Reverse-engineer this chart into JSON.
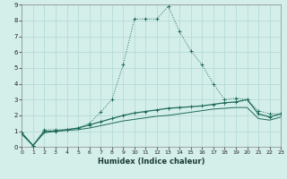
{
  "xlabel": "Humidex (Indice chaleur)",
  "bg_color": "#d4eeea",
  "grid_color": "#b0d8d4",
  "line_color": "#1e6b5a",
  "xlim": [
    0,
    23
  ],
  "ylim": [
    0,
    9
  ],
  "xticks": [
    0,
    1,
    2,
    3,
    4,
    5,
    6,
    7,
    8,
    9,
    10,
    11,
    12,
    13,
    14,
    15,
    16,
    17,
    18,
    19,
    20,
    21,
    22,
    23
  ],
  "yticks": [
    0,
    1,
    2,
    3,
    4,
    5,
    6,
    7,
    8,
    9
  ],
  "curve1_x": [
    0,
    1,
    2,
    3,
    4,
    5,
    6,
    7,
    8,
    9,
    10,
    11,
    12,
    13,
    14,
    15,
    16,
    17,
    18,
    19,
    20,
    21,
    22,
    23
  ],
  "curve1_y": [
    0.9,
    0.05,
    1.1,
    1.1,
    1.1,
    1.2,
    1.5,
    2.2,
    3.0,
    5.2,
    8.1,
    8.1,
    8.1,
    8.9,
    7.3,
    6.1,
    5.2,
    4.0,
    3.0,
    3.1,
    3.0,
    2.3,
    2.1,
    2.1
  ],
  "curve2_x": [
    0,
    1,
    2,
    3,
    4,
    5,
    6,
    7,
    8,
    9,
    10,
    11,
    12,
    13,
    14,
    15,
    16,
    17,
    18,
    19,
    20,
    21,
    22,
    23
  ],
  "curve2_y": [
    0.9,
    0.1,
    1.0,
    1.0,
    1.1,
    1.2,
    1.4,
    1.6,
    1.8,
    2.0,
    2.15,
    2.25,
    2.35,
    2.45,
    2.5,
    2.55,
    2.6,
    2.7,
    2.8,
    2.85,
    3.0,
    2.1,
    1.9,
    2.1
  ],
  "curve3_x": [
    0,
    1,
    2,
    3,
    4,
    5,
    6,
    7,
    8,
    9,
    10,
    11,
    12,
    13,
    14,
    15,
    16,
    17,
    18,
    19,
    20,
    21,
    22,
    23
  ],
  "curve3_y": [
    0.8,
    0.1,
    0.9,
    1.0,
    1.05,
    1.1,
    1.2,
    1.35,
    1.5,
    1.65,
    1.75,
    1.85,
    1.95,
    2.0,
    2.1,
    2.2,
    2.3,
    2.4,
    2.45,
    2.5,
    2.5,
    1.8,
    1.7,
    1.9
  ]
}
